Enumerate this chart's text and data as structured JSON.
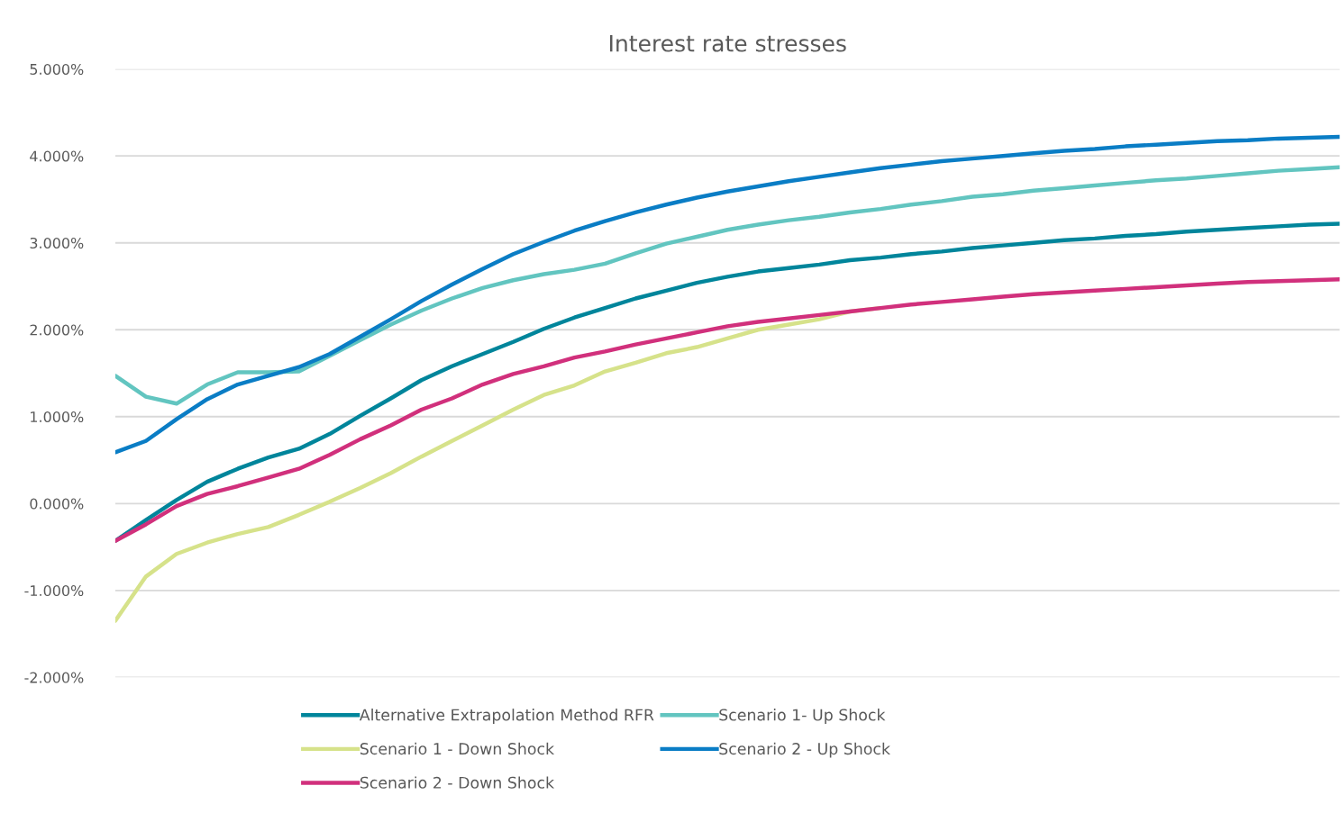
{
  "chart_data": {
    "type": "line",
    "title": "Interest rate stresses",
    "categories": [
      null,
      null,
      null,
      null,
      null,
      null,
      null,
      null,
      null,
      null,
      null,
      null,
      null,
      null,
      null,
      null,
      null,
      null,
      null,
      null,
      null,
      null,
      null,
      null,
      null,
      null,
      null,
      null,
      null,
      null,
      null,
      null,
      null,
      null,
      null,
      null,
      null,
      null,
      null,
      null,
      null
    ],
    "series": [
      {
        "name": "Alternative Extrapolation Method RFR",
        "color": "#00859b",
        "values": [
          -0.43,
          -0.19,
          0.04,
          0.25,
          0.4,
          0.53,
          0.63,
          0.8,
          1.01,
          1.21,
          1.42,
          1.58,
          1.72,
          1.86,
          2.01,
          2.14,
          2.25,
          2.36,
          2.45,
          2.54,
          2.61,
          2.67,
          2.71,
          2.75,
          2.8,
          2.83,
          2.87,
          2.9,
          2.94,
          2.97,
          3.0,
          3.03,
          3.05,
          3.08,
          3.1,
          3.13,
          3.15,
          3.17,
          3.19,
          3.21,
          3.22
        ]
      },
      {
        "name": "Scenario 1- Up Shock",
        "color": "#62c5c0",
        "values": [
          1.47,
          1.23,
          1.15,
          1.37,
          1.51,
          1.51,
          1.52,
          1.7,
          1.88,
          2.06,
          2.22,
          2.36,
          2.48,
          2.57,
          2.64,
          2.69,
          2.76,
          2.88,
          2.99,
          3.07,
          3.15,
          3.21,
          3.26,
          3.3,
          3.35,
          3.39,
          3.44,
          3.48,
          3.53,
          3.56,
          3.6,
          3.63,
          3.66,
          3.69,
          3.72,
          3.74,
          3.77,
          3.8,
          3.83,
          3.85,
          3.87
        ]
      },
      {
        "name": "Scenario 1 - Down Shock",
        "color": "#d6e28a",
        "values": [
          -1.35,
          -0.84,
          -0.58,
          -0.45,
          -0.35,
          -0.27,
          -0.13,
          0.02,
          0.18,
          0.35,
          0.54,
          0.72,
          0.9,
          1.08,
          1.25,
          1.36,
          1.52,
          1.62,
          1.73,
          1.8,
          1.9,
          2.0,
          2.06,
          2.12,
          2.21,
          2.25,
          null,
          null,
          null,
          null,
          null,
          null,
          null,
          null,
          null,
          null,
          null,
          null,
          null,
          null,
          null
        ]
      },
      {
        "name": "Scenario 2 - Up Shock",
        "color": "#0a7dc5",
        "values": [
          0.59,
          0.72,
          0.97,
          1.2,
          1.37,
          1.47,
          1.57,
          1.72,
          1.92,
          2.12,
          2.33,
          2.52,
          2.7,
          2.87,
          3.01,
          3.14,
          3.25,
          3.35,
          3.44,
          3.52,
          3.59,
          3.65,
          3.71,
          3.76,
          3.81,
          3.86,
          3.9,
          3.94,
          3.97,
          4.0,
          4.03,
          4.06,
          4.08,
          4.11,
          4.13,
          4.15,
          4.17,
          4.18,
          4.2,
          4.21,
          4.22
        ]
      },
      {
        "name": "Scenario 2 - Down Shock",
        "color": "#d1307c",
        "values": [
          -0.43,
          -0.24,
          -0.03,
          0.11,
          0.2,
          0.3,
          0.4,
          0.56,
          0.74,
          0.9,
          1.08,
          1.21,
          1.37,
          1.49,
          1.58,
          1.68,
          1.75,
          1.83,
          1.9,
          1.97,
          2.04,
          2.09,
          2.13,
          2.17,
          2.21,
          2.25,
          2.29,
          2.32,
          2.35,
          2.38,
          2.41,
          2.43,
          2.45,
          2.47,
          2.49,
          2.51,
          2.53,
          2.55,
          2.56,
          2.57,
          2.58
        ]
      }
    ],
    "ylim": [
      -2,
      5
    ],
    "yticks": [
      {
        "value": -2,
        "label": "-2.000%"
      },
      {
        "value": -1,
        "label": "-1.000%"
      },
      {
        "value": 0,
        "label": "0.000%"
      },
      {
        "value": 1,
        "label": "1.000%"
      },
      {
        "value": 2,
        "label": "2.000%"
      },
      {
        "value": 3,
        "label": "3.000%"
      },
      {
        "value": 4,
        "label": "4.000%"
      },
      {
        "value": 5,
        "label": "5.000%"
      }
    ],
    "tick_labels": "y",
    "grid": "y",
    "legend": "bottom",
    "line_style": "solid",
    "marker": "none"
  }
}
